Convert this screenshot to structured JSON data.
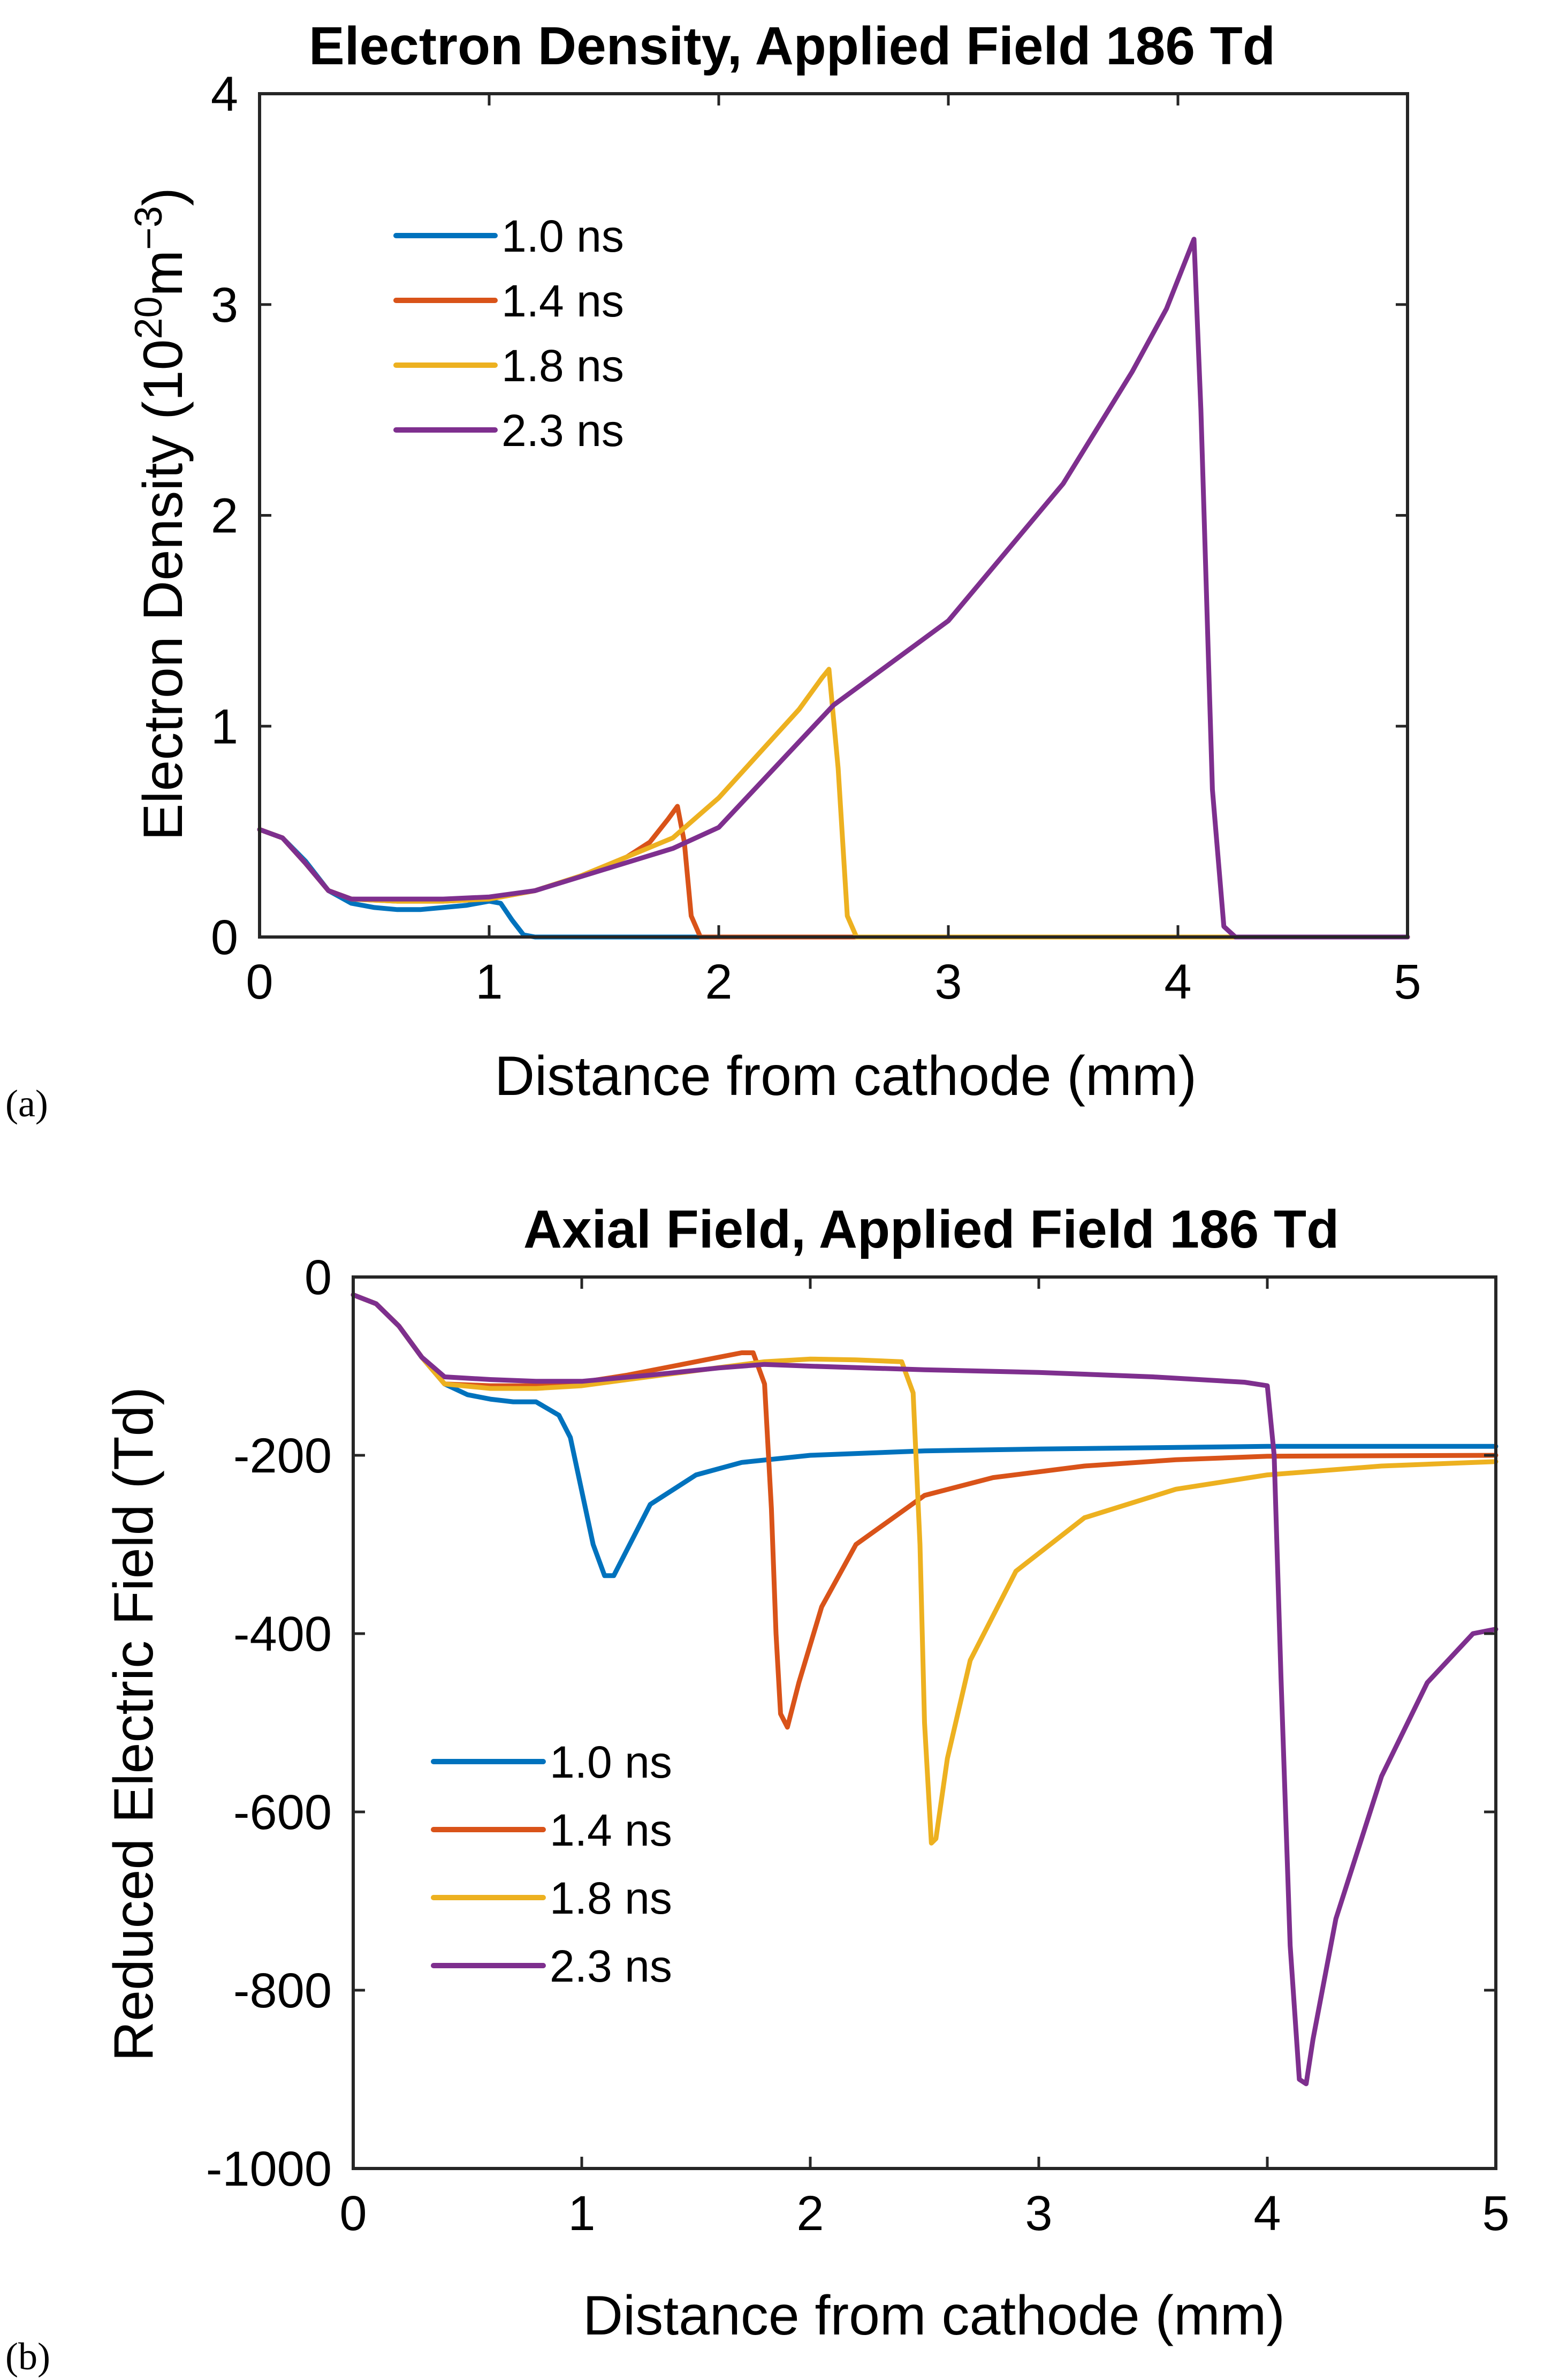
{
  "figure": {
    "panel_tags": [
      "(a)",
      "(b)"
    ]
  },
  "chart_data": [
    {
      "type": "line",
      "title": "Electron Density, Applied Field 186 Td",
      "xlabel": "Distance from cathode (mm)",
      "ylabel_prefix": "Electron Density (10",
      "ylabel_exp1": "20",
      "ylabel_mid": "m",
      "ylabel_exp2": "−3",
      "ylabel_suffix": ")",
      "xlim": [
        0,
        5
      ],
      "ylim": [
        0,
        4
      ],
      "xticks": [
        0,
        1,
        2,
        3,
        4,
        5
      ],
      "yticks": [
        0,
        1,
        2,
        3,
        4
      ],
      "legend_position": "top-left",
      "series": [
        {
          "name": "1.0 ns",
          "color": "#0072BD",
          "x": [
            0,
            0.1,
            0.2,
            0.3,
            0.4,
            0.5,
            0.6,
            0.7,
            0.8,
            0.9,
            1.0,
            1.05,
            1.1,
            1.15,
            1.2,
            5.0
          ],
          "y": [
            0.51,
            0.47,
            0.36,
            0.22,
            0.16,
            0.14,
            0.13,
            0.13,
            0.14,
            0.15,
            0.17,
            0.16,
            0.08,
            0.01,
            0,
            0
          ]
        },
        {
          "name": "1.4 ns",
          "color": "#D95319",
          "x": [
            0,
            0.1,
            0.2,
            0.3,
            0.4,
            0.6,
            0.8,
            1.0,
            1.2,
            1.4,
            1.6,
            1.7,
            1.78,
            1.82,
            1.85,
            1.88,
            1.92,
            5.0
          ],
          "y": [
            0.51,
            0.47,
            0.35,
            0.22,
            0.18,
            0.17,
            0.17,
            0.18,
            0.22,
            0.29,
            0.38,
            0.45,
            0.56,
            0.62,
            0.45,
            0.1,
            0,
            0
          ]
        },
        {
          "name": "1.8 ns",
          "color": "#EDB120",
          "x": [
            0,
            0.1,
            0.2,
            0.3,
            0.4,
            0.6,
            0.8,
            1.0,
            1.2,
            1.4,
            1.6,
            1.8,
            2.0,
            2.2,
            2.35,
            2.45,
            2.48,
            2.52,
            2.56,
            2.6,
            5.0
          ],
          "y": [
            0.51,
            0.47,
            0.35,
            0.22,
            0.18,
            0.17,
            0.17,
            0.18,
            0.22,
            0.29,
            0.38,
            0.47,
            0.66,
            0.9,
            1.08,
            1.23,
            1.27,
            0.8,
            0.1,
            0,
            0
          ]
        },
        {
          "name": "2.3 ns",
          "color": "#7E2F8E",
          "x": [
            0,
            0.1,
            0.2,
            0.3,
            0.4,
            0.6,
            0.8,
            1.0,
            1.2,
            1.5,
            1.8,
            2.0,
            2.5,
            3.0,
            3.5,
            3.8,
            3.95,
            4.03,
            4.07,
            4.1,
            4.15,
            4.2,
            4.25,
            5.0
          ],
          "y": [
            0.51,
            0.47,
            0.35,
            0.22,
            0.18,
            0.18,
            0.18,
            0.19,
            0.22,
            0.32,
            0.42,
            0.52,
            1.1,
            1.5,
            2.15,
            2.68,
            2.98,
            3.2,
            3.31,
            2.5,
            0.7,
            0.05,
            0,
            0
          ]
        }
      ]
    },
    {
      "type": "line",
      "title": "Axial Field, Applied Field 186 Td",
      "xlabel": "Distance from cathode (mm)",
      "ylabel": "Reduced Electric Field (Td)",
      "xlim": [
        0,
        5
      ],
      "ylim": [
        -1000,
        0
      ],
      "xticks": [
        0,
        1,
        2,
        3,
        4,
        5
      ],
      "yticks": [
        0,
        -200,
        -400,
        -600,
        -800,
        -1000
      ],
      "legend_position": "bottom-left",
      "series": [
        {
          "name": "1.0 ns",
          "color": "#0072BD",
          "x": [
            0,
            0.1,
            0.2,
            0.3,
            0.4,
            0.5,
            0.6,
            0.7,
            0.8,
            0.9,
            0.95,
            1.0,
            1.05,
            1.1,
            1.14,
            1.2,
            1.3,
            1.5,
            1.7,
            2.0,
            2.5,
            3.0,
            4.0,
            5.0
          ],
          "y": [
            -20,
            -30,
            -55,
            -90,
            -120,
            -132,
            -137,
            -140,
            -140,
            -155,
            -180,
            -240,
            -300,
            -335,
            -335,
            -305,
            -255,
            -222,
            -208,
            -200,
            -195,
            -193,
            -190,
            -190
          ]
        },
        {
          "name": "1.4 ns",
          "color": "#D95319",
          "x": [
            0,
            0.1,
            0.2,
            0.3,
            0.4,
            0.6,
            0.8,
            1.0,
            1.2,
            1.4,
            1.6,
            1.7,
            1.75,
            1.8,
            1.83,
            1.85,
            1.87,
            1.9,
            1.95,
            2.05,
            2.2,
            2.5,
            2.8,
            3.2,
            3.6,
            4.0,
            5.0
          ],
          "y": [
            -20,
            -30,
            -55,
            -90,
            -120,
            -122,
            -122,
            -118,
            -110,
            -100,
            -90,
            -85,
            -85,
            -120,
            -260,
            -400,
            -490,
            -505,
            -455,
            -370,
            -300,
            -245,
            -225,
            -212,
            -205,
            -201,
            -200
          ]
        },
        {
          "name": "1.8 ns",
          "color": "#EDB120",
          "x": [
            0,
            0.1,
            0.2,
            0.3,
            0.4,
            0.6,
            0.8,
            1.0,
            1.2,
            1.5,
            1.8,
            2.0,
            2.2,
            2.4,
            2.45,
            2.48,
            2.5,
            2.53,
            2.55,
            2.6,
            2.7,
            2.9,
            3.2,
            3.6,
            4.0,
            4.5,
            5.0
          ],
          "y": [
            -20,
            -30,
            -55,
            -90,
            -120,
            -125,
            -125,
            -122,
            -115,
            -105,
            -95,
            -92,
            -93,
            -95,
            -130,
            -300,
            -500,
            -635,
            -630,
            -540,
            -430,
            -330,
            -270,
            -238,
            -222,
            -212,
            -207
          ]
        },
        {
          "name": "2.3 ns",
          "color": "#7E2F8E",
          "x": [
            0,
            0.1,
            0.2,
            0.3,
            0.4,
            0.6,
            0.8,
            1.0,
            1.3,
            1.6,
            1.8,
            2.0,
            2.5,
            3.0,
            3.5,
            3.9,
            4.0,
            4.03,
            4.06,
            4.1,
            4.14,
            4.17,
            4.2,
            4.3,
            4.5,
            4.7,
            4.9,
            5.0
          ],
          "y": [
            -20,
            -30,
            -55,
            -90,
            -112,
            -115,
            -117,
            -117,
            -110,
            -102,
            -98,
            -100,
            -104,
            -107,
            -112,
            -118,
            -122,
            -200,
            -450,
            -750,
            -900,
            -905,
            -855,
            -720,
            -560,
            -455,
            -400,
            -395
          ]
        }
      ]
    }
  ]
}
